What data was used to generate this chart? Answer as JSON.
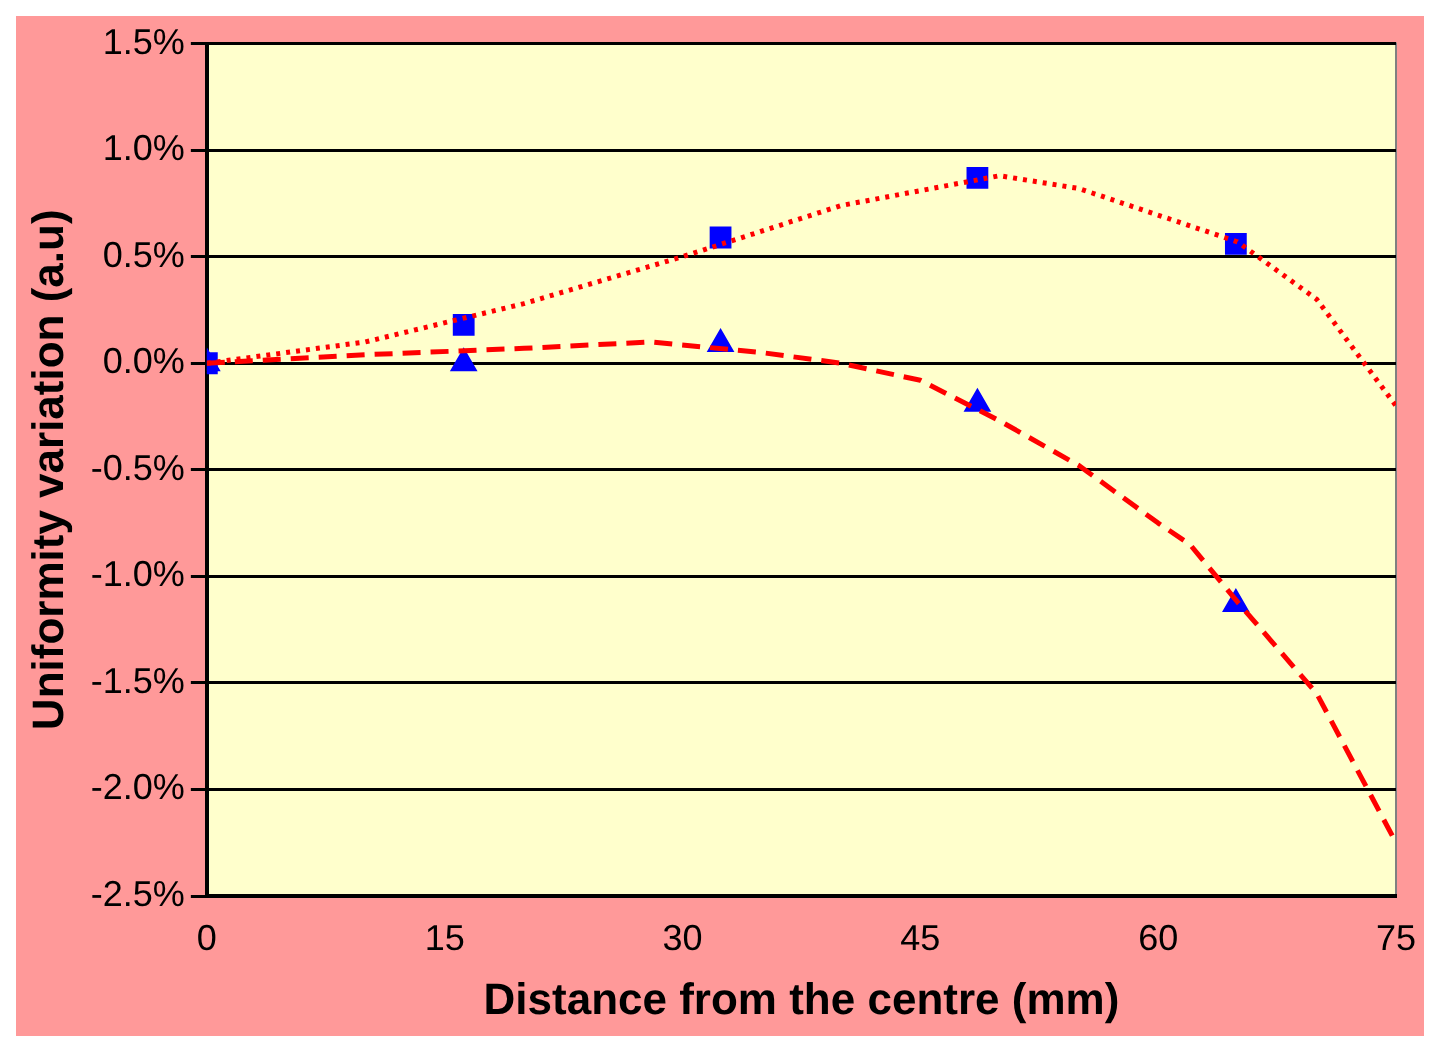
{
  "chart_data": {
    "type": "scatter",
    "xlabel": "Distance from the centre (mm)",
    "ylabel": "Uniformity variation (a.u)",
    "xlim": [
      0,
      75
    ],
    "xticks": [
      0,
      15,
      30,
      45,
      60,
      75
    ],
    "ylim": [
      -2.5,
      1.5
    ],
    "yticks": [
      {
        "value": -2.5,
        "label": "-2.5%"
      },
      {
        "value": -2,
        "label": "-2.0%"
      },
      {
        "value": -1.5,
        "label": "-1.5%"
      },
      {
        "value": -1,
        "label": "-1.0%"
      },
      {
        "value": -0.5,
        "label": "-0.5%"
      },
      {
        "value": 0,
        "label": "0.0%"
      },
      {
        "value": 0.5,
        "label": "0.5%"
      },
      {
        "value": 1,
        "label": "1.0%"
      },
      {
        "value": 1.5,
        "label": "1.5%"
      }
    ],
    "grid": "y",
    "legend": false,
    "series": [
      {
        "type": "line",
        "color": "#ff0000",
        "line_style": "dotted",
        "marker": "none",
        "x": [
          0,
          10,
          20,
          30,
          40,
          50,
          55,
          65,
          70,
          75
        ],
        "values": [
          0,
          0.1,
          0.28,
          0.5,
          0.74,
          0.88,
          0.82,
          0.57,
          0.3,
          -0.2
        ]
      },
      {
        "type": "line",
        "color": "#ff0000",
        "line_style": "dashed",
        "marker": "none",
        "x": [
          0,
          10,
          20,
          28,
          35,
          40,
          45,
          50,
          55,
          60,
          62,
          65,
          70,
          75
        ],
        "values": [
          0,
          0.04,
          0.07,
          0.1,
          0.05,
          0,
          -0.08,
          -0.27,
          -0.48,
          -0.75,
          -0.85,
          -1.12,
          -1.55,
          -2.25
        ]
      },
      {
        "type": "scatter",
        "color": "#0000ff",
        "marker": "square",
        "x": [
          0,
          16.2,
          32.4,
          48.6,
          64.9
        ],
        "values": [
          0,
          0.18,
          0.59,
          0.87,
          0.56
        ]
      },
      {
        "type": "scatter",
        "color": "#0000ff",
        "marker": "triangle",
        "x": [
          0,
          16.2,
          32.4,
          48.6,
          64.9
        ],
        "values": [
          0,
          0,
          0.09,
          -0.19,
          -1.13
        ]
      }
    ]
  }
}
